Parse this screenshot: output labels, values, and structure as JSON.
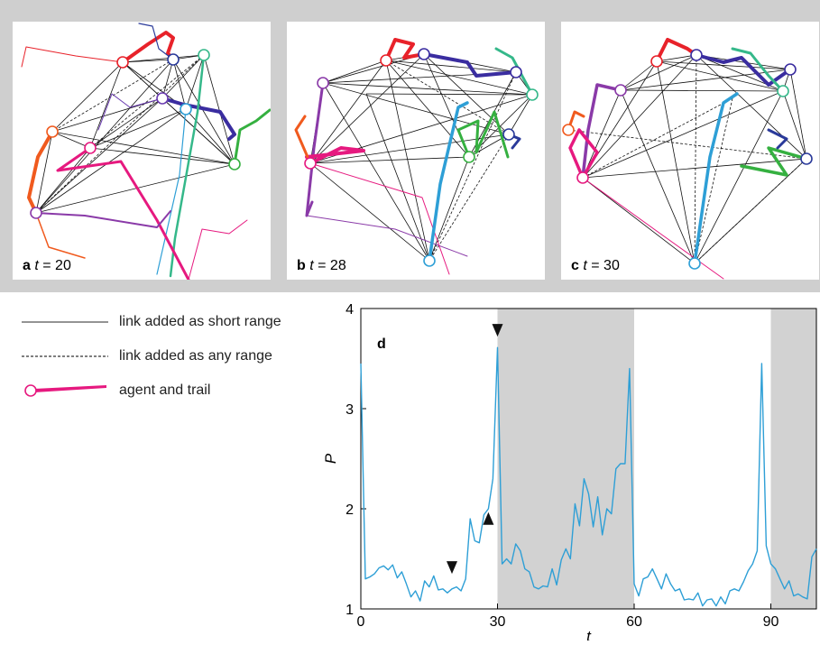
{
  "panels": [
    {
      "id": "a",
      "letter": "a",
      "tvar": "t",
      "eq": " = 20"
    },
    {
      "id": "b",
      "letter": "b",
      "tvar": "t",
      "eq": " = 28"
    },
    {
      "id": "c",
      "letter": "c",
      "tvar": "t",
      "eq": " = 30"
    }
  ],
  "legend": {
    "solid_label": "link added as short range",
    "dashed_label": "link added as any range",
    "agent_label": "agent and trail"
  },
  "colors": {
    "series": "#2e9fd6",
    "shade": "#d2d2d2",
    "agent_sample": "#e6197f"
  },
  "chart_data": {
    "type": "line",
    "panel_letter": "d",
    "xlabel": "t",
    "ylabel": "P̄",
    "xlim": [
      0,
      100
    ],
    "ylim": [
      1,
      4
    ],
    "xticks": [
      0,
      30,
      60,
      90
    ],
    "yticks": [
      1,
      2,
      3,
      4
    ],
    "shaded_intervals": [
      [
        30,
        60
      ],
      [
        90,
        100
      ]
    ],
    "markers": [
      {
        "x": 20,
        "y": 1.35,
        "direction": "down"
      },
      {
        "x": 28,
        "y": 1.84,
        "direction": "up"
      },
      {
        "x": 30,
        "y": 3.72,
        "direction": "down"
      }
    ],
    "series": [
      {
        "x": [
          0,
          1,
          2,
          3,
          4,
          5,
          6,
          7,
          8,
          9,
          10,
          11,
          12,
          13,
          14,
          15,
          16,
          17,
          18,
          19,
          20,
          21,
          22,
          23,
          24,
          25,
          26,
          27,
          28,
          29,
          30,
          31,
          32,
          33,
          34,
          35,
          36,
          37,
          38,
          39,
          40,
          41,
          42,
          43,
          44,
          45,
          46,
          47,
          48,
          49,
          50,
          51,
          52,
          53,
          54,
          55,
          56,
          57,
          58,
          59,
          60,
          61,
          62,
          63,
          64,
          65,
          66,
          67,
          68,
          69,
          70,
          71,
          72,
          73,
          74,
          75,
          76,
          77,
          78,
          79,
          80,
          81,
          82,
          83,
          84,
          85,
          86,
          87,
          88,
          89,
          90,
          91,
          92,
          93,
          94,
          95,
          96,
          97,
          98,
          99,
          100
        ],
        "values": [
          3.45,
          1.3,
          1.32,
          1.35,
          1.41,
          1.43,
          1.39,
          1.44,
          1.31,
          1.37,
          1.25,
          1.12,
          1.18,
          1.08,
          1.28,
          1.22,
          1.33,
          1.19,
          1.2,
          1.16,
          1.2,
          1.22,
          1.18,
          1.3,
          1.9,
          1.68,
          1.66,
          1.94,
          2.0,
          2.3,
          3.61,
          1.45,
          1.5,
          1.45,
          1.65,
          1.58,
          1.4,
          1.37,
          1.22,
          1.2,
          1.23,
          1.22,
          1.4,
          1.24,
          1.49,
          1.6,
          1.5,
          2.05,
          1.83,
          2.3,
          2.15,
          1.82,
          2.12,
          1.74,
          2.0,
          1.95,
          2.4,
          2.45,
          2.45,
          3.4,
          1.25,
          1.13,
          1.3,
          1.32,
          1.4,
          1.3,
          1.2,
          1.35,
          1.25,
          1.18,
          1.2,
          1.09,
          1.1,
          1.09,
          1.16,
          1.03,
          1.09,
          1.1,
          1.03,
          1.12,
          1.05,
          1.18,
          1.2,
          1.18,
          1.27,
          1.38,
          1.45,
          1.58,
          3.45,
          1.63,
          1.45,
          1.4,
          1.3,
          1.2,
          1.28,
          1.13,
          1.15,
          1.12,
          1.1,
          1.52,
          1.6
        ]
      }
    ]
  }
}
